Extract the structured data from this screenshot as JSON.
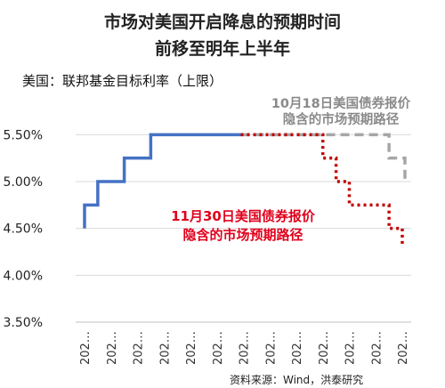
{
  "chart_data": {
    "type": "line",
    "title": "市场对美国开启降息的预期时间",
    "subtitle": "前移至明年上半年",
    "ylabel": "美国：联邦基金目标利率（上限）",
    "ylim": [
      3.5,
      5.75
    ],
    "yticks": [
      "3.50%",
      "4.00%",
      "4.50%",
      "5.00%",
      "5.50%"
    ],
    "x_tick_label": "202…",
    "x_count": 13,
    "series": [
      {
        "color": "#4472c4",
        "style": "solid",
        "points": [
          [
            0,
            4.5
          ],
          [
            0,
            4.75
          ],
          [
            0.5,
            4.75
          ],
          [
            0.5,
            5.0
          ],
          [
            1.5,
            5.0
          ],
          [
            1.5,
            5.25
          ],
          [
            2.5,
            5.25
          ],
          [
            2.5,
            5.5
          ],
          [
            5.9,
            5.5
          ]
        ]
      },
      {
        "color": "#a6a6a6",
        "style": "dashed",
        "points": [
          [
            5.9,
            5.5
          ],
          [
            11.5,
            5.5
          ],
          [
            11.5,
            5.25
          ],
          [
            12.1,
            5.25
          ],
          [
            12.1,
            4.98
          ]
        ]
      },
      {
        "color": "#c00000",
        "style": "dotted",
        "points": [
          [
            5.9,
            5.5
          ],
          [
            9.0,
            5.5
          ],
          [
            9.0,
            5.25
          ],
          [
            9.5,
            5.25
          ],
          [
            9.5,
            5.0
          ],
          [
            10.0,
            5.0
          ],
          [
            10.0,
            4.75
          ],
          [
            11.5,
            4.75
          ],
          [
            11.5,
            4.5
          ],
          [
            12.0,
            4.5
          ],
          [
            12.0,
            4.3
          ]
        ]
      }
    ],
    "annotations": [
      {
        "color": "#8a8a8a",
        "lines": [
          "10月18日美国债券报价",
          "隐含的市场预期路径"
        ]
      },
      {
        "color": "#e0001b",
        "lines": [
          "11月30日美国债券报价",
          "隐含的市场预期路径"
        ]
      }
    ],
    "grid": true
  },
  "source": "资料来源：Wind，洪泰研究"
}
